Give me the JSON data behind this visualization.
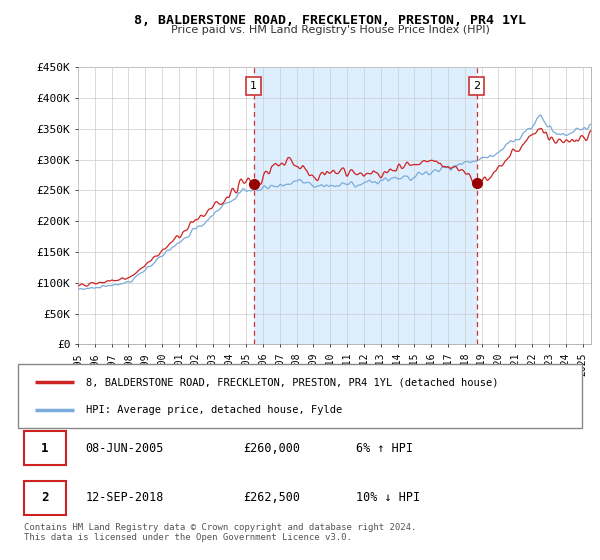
{
  "title": "8, BALDERSTONE ROAD, FRECKLETON, PRESTON, PR4 1YL",
  "subtitle": "Price paid vs. HM Land Registry's House Price Index (HPI)",
  "ylim": [
    0,
    450000
  ],
  "yticks": [
    0,
    50000,
    100000,
    150000,
    200000,
    250000,
    300000,
    350000,
    400000,
    450000
  ],
  "ytick_labels": [
    "£0",
    "£50K",
    "£100K",
    "£150K",
    "£200K",
    "£250K",
    "£300K",
    "£350K",
    "£400K",
    "£450K"
  ],
  "sale1_date_num": 2005.44,
  "sale1_price": 260000,
  "sale2_date_num": 2018.71,
  "sale2_price": 262500,
  "legend_line1": "8, BALDERSTONE ROAD, FRECKLETON, PRESTON, PR4 1YL (detached house)",
  "legend_line2": "HPI: Average price, detached house, Fylde",
  "footer": "Contains HM Land Registry data © Crown copyright and database right 2024.\nThis data is licensed under the Open Government Licence v3.0.",
  "sale_marker_color": "#990000",
  "vline_color": "#cc3333",
  "hpi_line_color": "#7aabda",
  "price_line_color": "#cc2222",
  "shade_color": "#ddeeff",
  "grid_color": "#cccccc",
  "xstart": 1995.0,
  "xend": 2025.5,
  "sale1_date_str": "08-JUN-2005",
  "sale1_price_str": "£260,000",
  "sale1_hpi_str": "6% ↑ HPI",
  "sale2_date_str": "12-SEP-2018",
  "sale2_price_str": "£262,500",
  "sale2_hpi_str": "10% ↓ HPI"
}
